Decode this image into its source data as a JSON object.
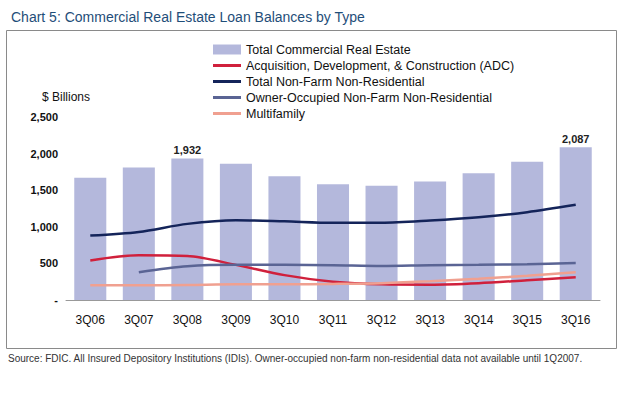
{
  "chart_data": {
    "type": "bar",
    "title": "Chart 5: Commercial Real Estate Loan Balances by Type",
    "ylabel": "$ Billions",
    "note": "Source: FDIC. All Insured Depository Institutions (IDIs). Owner-occupied non-farm non-residential data not available until 1Q2007.",
    "categories": [
      "3Q06",
      "3Q07",
      "3Q08",
      "3Q09",
      "3Q10",
      "3Q11",
      "3Q12",
      "3Q13",
      "3Q14",
      "3Q15",
      "3Q16"
    ],
    "series": [
      {
        "name": "Total Commercial Real Estate",
        "type": "bar",
        "color": "#b4b8dc",
        "values": [
          1670,
          1810,
          1932,
          1860,
          1690,
          1580,
          1560,
          1620,
          1730,
          1890,
          2087
        ],
        "value_labels": [
          null,
          null,
          "1,932",
          null,
          null,
          null,
          null,
          null,
          null,
          null,
          "2,087"
        ]
      },
      {
        "name": "Acquisition, Development, & Construction (ADC)",
        "type": "line",
        "color": "#d0203c",
        "values": [
          540,
          610,
          600,
          480,
          340,
          250,
          215,
          210,
          230,
          270,
          310
        ]
      },
      {
        "name": "Total Non-Farm Non-Residential",
        "type": "line",
        "color": "#14245a",
        "values": [
          880,
          930,
          1040,
          1090,
          1075,
          1055,
          1055,
          1085,
          1130,
          1200,
          1300
        ]
      },
      {
        "name": "Owner-Occupied Non-Farm Non-Residential",
        "type": "line",
        "color": "#5a6494",
        "values": [
          null,
          380,
          460,
          480,
          480,
          475,
          465,
          475,
          480,
          490,
          505
        ]
      },
      {
        "name": "Multifamily",
        "type": "line",
        "color": "#f0a090",
        "values": [
          200,
          200,
          205,
          215,
          215,
          220,
          230,
          255,
          290,
          330,
          380
        ]
      }
    ],
    "ylim": [
      0,
      2500
    ],
    "yticks": [
      {
        "value": 0,
        "label": "-"
      },
      500,
      {
        "value": 1000,
        "label": "1,000"
      },
      {
        "value": 1500,
        "label": "1,500"
      },
      {
        "value": 2000,
        "label": "2,000"
      },
      {
        "value": 2500,
        "label": "2,500"
      }
    ],
    "grid": false,
    "legend": "top",
    "data_labels": true
  }
}
